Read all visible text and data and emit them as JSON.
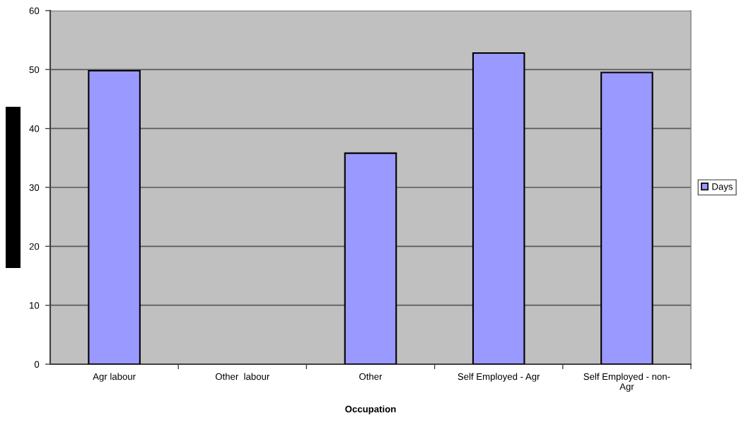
{
  "chart_data": {
    "type": "bar",
    "xlabel": "Occupation",
    "categories": [
      "Agr labour",
      "Other  labour",
      "Other",
      "Self Employed - Agr",
      "Self Employed - non-\nAgr"
    ],
    "series": [
      {
        "name": "Days",
        "color": "#9999ff",
        "values": [
          49.8,
          null,
          35.8,
          52.8,
          49.5
        ]
      }
    ],
    "ylim": [
      0,
      60
    ],
    "yticks": [
      0,
      10,
      20,
      30,
      40,
      50,
      60
    ],
    "grid": "y",
    "legend": "right"
  }
}
